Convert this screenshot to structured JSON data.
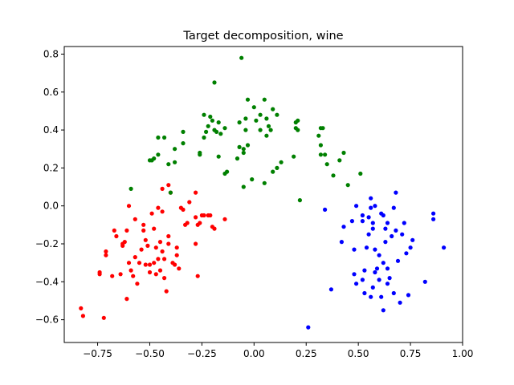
{
  "chart_data": {
    "type": "scatter",
    "title": "Target decomposition, wine",
    "xlabel": "",
    "ylabel": "",
    "xlim": [
      -0.91,
      1.0
    ],
    "ylim": [
      -0.72,
      0.84
    ],
    "xticks": [
      -0.75,
      -0.5,
      -0.25,
      0.0,
      0.25,
      0.5,
      0.75,
      1.0
    ],
    "xtick_labels": [
      "−0.75",
      "−0.50",
      "−0.25",
      "0.00",
      "0.25",
      "0.50",
      "0.75",
      "1.00"
    ],
    "yticks": [
      -0.6,
      -0.4,
      -0.2,
      0.0,
      0.2,
      0.4,
      0.6,
      0.8
    ],
    "ytick_labels": [
      "−0.6",
      "−0.4",
      "−0.2",
      "0.0",
      "0.2",
      "0.4",
      "0.6",
      "0.8"
    ],
    "grid": false,
    "series": [
      {
        "color": "#ff0000",
        "points": [
          [
            -0.83,
            -0.54
          ],
          [
            -0.82,
            -0.58
          ],
          [
            -0.72,
            -0.59
          ],
          [
            -0.74,
            -0.35
          ],
          [
            -0.74,
            -0.36
          ],
          [
            -0.71,
            -0.24
          ],
          [
            -0.71,
            -0.26
          ],
          [
            -0.68,
            -0.37
          ],
          [
            -0.67,
            -0.13
          ],
          [
            -0.66,
            -0.16
          ],
          [
            -0.64,
            -0.36
          ],
          [
            -0.63,
            -0.21
          ],
          [
            -0.63,
            -0.2
          ],
          [
            -0.62,
            -0.19
          ],
          [
            -0.61,
            -0.49
          ],
          [
            -0.61,
            -0.13
          ],
          [
            -0.6,
            0.0
          ],
          [
            -0.6,
            -0.3
          ],
          [
            -0.59,
            -0.34
          ],
          [
            -0.58,
            -0.37
          ],
          [
            -0.57,
            -0.27
          ],
          [
            -0.56,
            -0.41
          ],
          [
            -0.55,
            -0.3
          ],
          [
            -0.54,
            -0.23
          ],
          [
            -0.53,
            -0.1
          ],
          [
            -0.53,
            -0.13
          ],
          [
            -0.52,
            -0.18
          ],
          [
            -0.52,
            -0.31
          ],
          [
            -0.51,
            -0.21
          ],
          [
            -0.5,
            -0.31
          ],
          [
            -0.5,
            -0.35
          ],
          [
            -0.49,
            -0.04
          ],
          [
            -0.48,
            -0.3
          ],
          [
            -0.47,
            -0.22
          ],
          [
            -0.47,
            -0.36
          ],
          [
            -0.46,
            -0.01
          ],
          [
            -0.46,
            -0.28
          ],
          [
            -0.45,
            -0.19
          ],
          [
            -0.45,
            -0.34
          ],
          [
            -0.44,
            0.09
          ],
          [
            -0.44,
            -0.24
          ],
          [
            -0.44,
            -0.03
          ],
          [
            -0.43,
            -0.28
          ],
          [
            -0.43,
            -0.38
          ],
          [
            -0.42,
            -0.45
          ],
          [
            -0.41,
            0.11
          ],
          [
            -0.41,
            -0.16
          ],
          [
            -0.4,
            0.07
          ],
          [
            -0.39,
            -0.3
          ],
          [
            -0.38,
            -0.31
          ],
          [
            -0.37,
            -0.22
          ],
          [
            -0.37,
            -0.26
          ],
          [
            -0.36,
            -0.33
          ],
          [
            -0.35,
            -0.01
          ],
          [
            -0.34,
            -0.02
          ],
          [
            -0.33,
            -0.1
          ],
          [
            -0.32,
            -0.09
          ],
          [
            -0.31,
            0.02
          ],
          [
            -0.28,
            0.07
          ],
          [
            -0.28,
            -0.06
          ],
          [
            -0.27,
            -0.37
          ],
          [
            -0.27,
            -0.1
          ],
          [
            -0.26,
            -0.09
          ],
          [
            -0.25,
            -0.05
          ],
          [
            -0.24,
            -0.05
          ],
          [
            -0.22,
            -0.05
          ],
          [
            -0.21,
            -0.05
          ],
          [
            -0.2,
            -0.11
          ],
          [
            -0.19,
            -0.12
          ],
          [
            -0.14,
            -0.07
          ],
          [
            -0.28,
            -0.2
          ],
          [
            -0.41,
            -0.2
          ],
          [
            -0.57,
            -0.07
          ],
          [
            -0.48,
            -0.12
          ]
        ]
      },
      {
        "color": "#008000",
        "points": [
          [
            -0.06,
            0.78
          ],
          [
            -0.19,
            0.65
          ],
          [
            -0.03,
            0.56
          ],
          [
            0.05,
            0.56
          ],
          [
            -0.24,
            0.48
          ],
          [
            -0.21,
            0.47
          ],
          [
            0.03,
            0.48
          ],
          [
            0.0,
            0.52
          ],
          [
            0.09,
            0.51
          ],
          [
            0.11,
            0.48
          ],
          [
            -0.2,
            0.45
          ],
          [
            -0.17,
            0.44
          ],
          [
            -0.22,
            0.42
          ],
          [
            -0.07,
            0.44
          ],
          [
            -0.04,
            0.46
          ],
          [
            0.01,
            0.45
          ],
          [
            0.06,
            0.46
          ],
          [
            -0.19,
            0.4
          ],
          [
            -0.18,
            0.39
          ],
          [
            -0.23,
            0.39
          ],
          [
            -0.14,
            0.41
          ],
          [
            -0.04,
            0.4
          ],
          [
            0.03,
            0.4
          ],
          [
            0.07,
            0.42
          ],
          [
            0.2,
            0.44
          ],
          [
            0.21,
            0.45
          ],
          [
            0.32,
            0.41
          ],
          [
            0.33,
            0.41
          ],
          [
            0.31,
            0.37
          ],
          [
            0.2,
            0.41
          ],
          [
            0.21,
            0.4
          ],
          [
            -0.34,
            0.39
          ],
          [
            -0.46,
            0.36
          ],
          [
            -0.43,
            0.36
          ],
          [
            -0.38,
            0.3
          ],
          [
            -0.34,
            0.33
          ],
          [
            -0.24,
            0.36
          ],
          [
            -0.16,
            0.38
          ],
          [
            -0.07,
            0.31
          ],
          [
            -0.05,
            0.3
          ],
          [
            -0.03,
            0.32
          ],
          [
            0.06,
            0.37
          ],
          [
            0.08,
            0.4
          ],
          [
            0.32,
            0.32
          ],
          [
            0.32,
            0.27
          ],
          [
            0.34,
            0.27
          ],
          [
            0.35,
            0.22
          ],
          [
            0.43,
            0.28
          ],
          [
            -0.46,
            0.27
          ],
          [
            -0.48,
            0.25
          ],
          [
            -0.5,
            0.24
          ],
          [
            -0.49,
            0.24
          ],
          [
            -0.38,
            0.23
          ],
          [
            -0.26,
            0.27
          ],
          [
            -0.26,
            0.28
          ],
          [
            -0.17,
            0.26
          ],
          [
            -0.08,
            0.25
          ],
          [
            -0.05,
            0.28
          ],
          [
            0.09,
            0.18
          ],
          [
            0.13,
            0.23
          ],
          [
            0.19,
            0.26
          ],
          [
            0.38,
            0.16
          ],
          [
            0.41,
            0.24
          ],
          [
            0.51,
            0.17
          ],
          [
            -0.41,
            0.22
          ],
          [
            -0.14,
            0.17
          ],
          [
            -0.13,
            0.18
          ],
          [
            -0.01,
            0.14
          ],
          [
            0.05,
            0.12
          ],
          [
            0.11,
            0.2
          ],
          [
            -0.4,
            0.07
          ],
          [
            -0.59,
            0.09
          ],
          [
            -0.05,
            0.1
          ],
          [
            0.22,
            0.03
          ],
          [
            0.45,
            0.11
          ]
        ]
      },
      {
        "color": "#0000ff",
        "points": [
          [
            0.26,
            -0.64
          ],
          [
            0.37,
            -0.44
          ],
          [
            0.42,
            -0.19
          ],
          [
            0.43,
            -0.11
          ],
          [
            0.47,
            -0.08
          ],
          [
            0.48,
            -0.23
          ],
          [
            0.48,
            -0.36
          ],
          [
            0.49,
            -0.41
          ],
          [
            0.49,
            0.0
          ],
          [
            0.52,
            -0.05
          ],
          [
            0.52,
            -0.08
          ],
          [
            0.52,
            -0.39
          ],
          [
            0.53,
            -0.34
          ],
          [
            0.53,
            -0.46
          ],
          [
            0.54,
            -0.22
          ],
          [
            0.55,
            -0.15
          ],
          [
            0.55,
            -0.06
          ],
          [
            0.56,
            0.04
          ],
          [
            0.56,
            -0.01
          ],
          [
            0.56,
            -0.48
          ],
          [
            0.57,
            -0.09
          ],
          [
            0.57,
            -0.12
          ],
          [
            0.57,
            -0.43
          ],
          [
            0.58,
            -0.23
          ],
          [
            0.58,
            0.0
          ],
          [
            0.58,
            -0.35
          ],
          [
            0.59,
            -0.33
          ],
          [
            0.6,
            -0.26
          ],
          [
            0.6,
            -0.39
          ],
          [
            0.61,
            -0.04
          ],
          [
            0.61,
            -0.48
          ],
          [
            0.62,
            -0.05
          ],
          [
            0.62,
            -0.3
          ],
          [
            0.62,
            -0.55
          ],
          [
            0.63,
            -0.12
          ],
          [
            0.63,
            -0.19
          ],
          [
            0.64,
            -0.33
          ],
          [
            0.64,
            -0.41
          ],
          [
            0.65,
            -0.38
          ],
          [
            0.66,
            -0.16
          ],
          [
            0.67,
            -0.01
          ],
          [
            0.67,
            -0.46
          ],
          [
            0.68,
            0.07
          ],
          [
            0.68,
            -0.13
          ],
          [
            0.69,
            -0.29
          ],
          [
            0.7,
            -0.51
          ],
          [
            0.71,
            -0.15
          ],
          [
            0.72,
            -0.09
          ],
          [
            0.73,
            -0.25
          ],
          [
            0.74,
            -0.47
          ],
          [
            0.75,
            -0.22
          ],
          [
            0.76,
            -0.18
          ],
          [
            0.82,
            -0.4
          ],
          [
            0.86,
            -0.04
          ],
          [
            0.86,
            -0.07
          ],
          [
            0.91,
            -0.22
          ],
          [
            0.34,
            -0.02
          ],
          [
            0.64,
            -0.09
          ]
        ]
      }
    ]
  }
}
